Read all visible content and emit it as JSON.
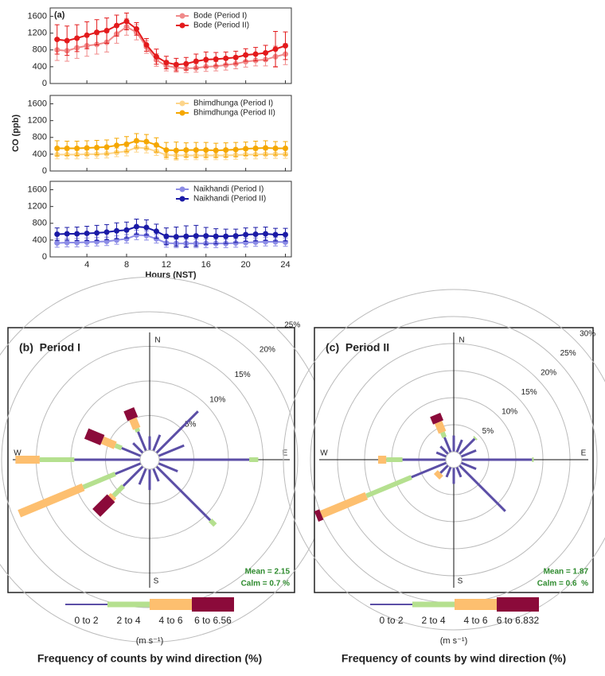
{
  "chart_data": [
    {
      "type": "line",
      "title": "(a)",
      "x": [
        1,
        2,
        3,
        4,
        5,
        6,
        7,
        8,
        9,
        10,
        11,
        12,
        13,
        14,
        15,
        16,
        17,
        18,
        19,
        20,
        21,
        22,
        23,
        24
      ],
      "xlim": [
        0.3,
        24.6
      ],
      "xticks": [
        4,
        8,
        12,
        16,
        20,
        24
      ],
      "ylim": [
        0,
        1800
      ],
      "yticks": [
        0,
        400,
        800,
        1200,
        1600
      ],
      "legend": "upper right",
      "series": [
        {
          "name": "Bode (Period I)",
          "color": "#f08a8a",
          "values": [
            800,
            780,
            850,
            900,
            930,
            980,
            1180,
            1350,
            1220,
            870,
            560,
            420,
            380,
            360,
            370,
            400,
            410,
            440,
            470,
            520,
            550,
            570,
            640,
            700
          ],
          "errors": [
            250,
            250,
            250,
            250,
            230,
            230,
            220,
            200,
            180,
            150,
            150,
            120,
            110,
            100,
            100,
            110,
            110,
            120,
            120,
            130,
            130,
            150,
            250,
            250
          ]
        },
        {
          "name": "Bode (Period II)",
          "color": "#e31a1c",
          "values": [
            1050,
            1020,
            1080,
            1150,
            1220,
            1260,
            1380,
            1480,
            1300,
            920,
            640,
            500,
            450,
            470,
            530,
            570,
            580,
            600,
            620,
            680,
            700,
            730,
            820,
            900
          ],
          "errors": [
            350,
            350,
            320,
            320,
            300,
            300,
            250,
            200,
            150,
            150,
            180,
            150,
            150,
            150,
            170,
            180,
            160,
            150,
            150,
            150,
            160,
            180,
            420,
            330
          ]
        }
      ]
    },
    {
      "type": "line",
      "ylabel": "CO (ppb)",
      "x": [
        1,
        2,
        3,
        4,
        5,
        6,
        7,
        8,
        9,
        10,
        11,
        12,
        13,
        14,
        15,
        16,
        17,
        18,
        19,
        20,
        21,
        22,
        23,
        24
      ],
      "xlim": [
        0.3,
        24.6
      ],
      "xticks": [
        4,
        8,
        12,
        16,
        20,
        24
      ],
      "ylim": [
        0,
        1800
      ],
      "yticks": [
        0,
        400,
        800,
        1200,
        1600
      ],
      "legend": "upper right",
      "series": [
        {
          "name": "Bhimdhunga (Period I)",
          "color": "#fdd58a",
          "values": [
            390,
            390,
            390,
            400,
            400,
            410,
            440,
            470,
            560,
            540,
            470,
            380,
            370,
            370,
            370,
            370,
            370,
            370,
            380,
            390,
            390,
            400,
            400,
            400
          ],
          "errors": [
            100,
            100,
            100,
            100,
            100,
            100,
            100,
            110,
            110,
            110,
            100,
            100,
            110,
            100,
            100,
            100,
            100,
            100,
            100,
            100,
            100,
            100,
            100,
            100
          ]
        },
        {
          "name": "Bhimdhunga (Period II)",
          "color": "#f5a700",
          "values": [
            540,
            540,
            540,
            550,
            560,
            570,
            610,
            640,
            720,
            700,
            620,
            500,
            490,
            500,
            500,
            500,
            490,
            500,
            510,
            530,
            540,
            550,
            540,
            540
          ],
          "errors": [
            180,
            170,
            170,
            170,
            170,
            170,
            170,
            180,
            170,
            170,
            170,
            180,
            200,
            170,
            180,
            180,
            170,
            170,
            170,
            160,
            170,
            170,
            160,
            160
          ]
        }
      ]
    },
    {
      "type": "line",
      "xlabel": "Hours (NST)",
      "x": [
        1,
        2,
        3,
        4,
        5,
        6,
        7,
        8,
        9,
        10,
        11,
        12,
        13,
        14,
        15,
        16,
        17,
        18,
        19,
        20,
        21,
        22,
        23,
        24
      ],
      "xlim": [
        0.3,
        24.6
      ],
      "xticks": [
        4,
        8,
        12,
        16,
        20,
        24
      ],
      "ylim": [
        0,
        1800
      ],
      "yticks": [
        0,
        400,
        800,
        1200,
        1600
      ],
      "legend": "upper right",
      "series": [
        {
          "name": "Naikhandi (Period I)",
          "color": "#8c8ce6",
          "values": [
            330,
            340,
            340,
            350,
            360,
            370,
            400,
            430,
            520,
            510,
            430,
            330,
            320,
            320,
            320,
            320,
            320,
            320,
            330,
            340,
            350,
            360,
            360,
            350
          ],
          "errors": [
            100,
            100,
            100,
            100,
            100,
            100,
            100,
            100,
            110,
            110,
            100,
            100,
            100,
            100,
            100,
            100,
            100,
            100,
            100,
            100,
            100,
            100,
            100,
            100
          ]
        },
        {
          "name": "Naikhandi (Period II)",
          "color": "#1a1aa6",
          "values": [
            540,
            550,
            550,
            560,
            570,
            590,
            620,
            640,
            720,
            700,
            610,
            490,
            480,
            490,
            500,
            500,
            490,
            490,
            500,
            530,
            540,
            550,
            530,
            530
          ],
          "errors": [
            150,
            150,
            160,
            170,
            180,
            180,
            190,
            190,
            180,
            180,
            170,
            200,
            230,
            250,
            250,
            200,
            180,
            170,
            160,
            160,
            160,
            160,
            150,
            150
          ]
        }
      ]
    },
    {
      "type": "windrose",
      "title": "(b)  Period I",
      "compass": [
        "N",
        "E",
        "S",
        "W"
      ],
      "angles": [
        0,
        22.5,
        45,
        67.5,
        90,
        112.5,
        135,
        157.5,
        180,
        202.5,
        225,
        247.5,
        270,
        292.5,
        315,
        337.5
      ],
      "rticks": [
        {
          "value": 5,
          "label": "5%"
        },
        {
          "value": 10,
          "label": "10%"
        },
        {
          "value": 15,
          "label": "15%"
        },
        {
          "value": 20,
          "label": "20%"
        },
        {
          "value": 25,
          "label": "25%"
        }
      ],
      "annotations": [
        "Mean = 2.15",
        "Calm = 0.7 %"
      ],
      "units": "(m s⁻¹)",
      "footer": "Frequency of counts by wind direction (%)",
      "series": [
        {
          "name": "0 to 2",
          "color": "#5b4ea6",
          "values": [
            2,
            2.5,
            8.5,
            4,
            13,
            3,
            11,
            2,
            3,
            2.5,
            4,
            4,
            9.5,
            3,
            2,
            3
          ]
        },
        {
          "name": "2 to 4",
          "color": "#b5e08f",
          "values": [
            0,
            0,
            0,
            0,
            1.3,
            0,
            1,
            0,
            0,
            0,
            2,
            5,
            5,
            1,
            0,
            0.5
          ]
        },
        {
          "name": "4 to 6",
          "color": "#fdbf6f",
          "values": [
            0,
            0,
            0,
            0,
            0,
            0,
            0,
            0,
            0,
            0,
            0.5,
            10,
            3.5,
            2,
            0,
            1.5
          ]
        },
        {
          "name": "6 to 6.56",
          "color": "#8b0a3a",
          "values": [
            0,
            0,
            0,
            0,
            0,
            0,
            0,
            0,
            0,
            0,
            3,
            0,
            0,
            2.5,
            0,
            1.5
          ]
        }
      ]
    },
    {
      "type": "windrose",
      "title": "(c)  Period II",
      "compass": [
        "N",
        "E",
        "S",
        "W"
      ],
      "angles": [
        0,
        22.5,
        45,
        67.5,
        90,
        112.5,
        135,
        157.5,
        180,
        202.5,
        225,
        247.5,
        270,
        292.5,
        315,
        337.5
      ],
      "rticks": [
        {
          "value": 5,
          "label": "5%"
        },
        {
          "value": 10,
          "label": "10%"
        },
        {
          "value": 15,
          "label": "15%"
        },
        {
          "value": 20,
          "label": "20%"
        },
        {
          "value": 25,
          "label": "25%"
        },
        {
          "value": 30,
          "label": "30%"
        }
      ],
      "annotations": [
        "Mean = 1.87",
        "Calm = 0.6  %"
      ],
      "units": "(m s⁻¹)",
      "footer": "Frequency of counts by wind direction (%)",
      "series": [
        {
          "name": "0 to 2",
          "color": "#5b4ea6",
          "values": [
            3,
            2.5,
            4,
            3,
            13,
            3,
            12,
            2,
            3,
            2,
            2,
            7,
            8,
            2,
            2,
            3
          ]
        },
        {
          "name": "2 to 4",
          "color": "#b5e08f",
          "values": [
            0,
            0,
            0.3,
            0,
            0.3,
            0,
            0,
            0,
            0,
            0,
            0,
            9,
            3,
            0,
            0,
            1
          ]
        },
        {
          "name": "4 to 6",
          "color": "#fdbf6f",
          "values": [
            0,
            0,
            0,
            0,
            0,
            0,
            0,
            0,
            0,
            0,
            1,
            9,
            1.5,
            0,
            0,
            2
          ]
        },
        {
          "name": "6 to 6.832",
          "color": "#8b0a3a",
          "values": [
            0,
            0,
            0,
            0,
            0,
            0,
            0,
            0,
            0,
            0,
            0,
            1,
            0,
            0,
            0,
            1.5
          ]
        }
      ]
    }
  ]
}
